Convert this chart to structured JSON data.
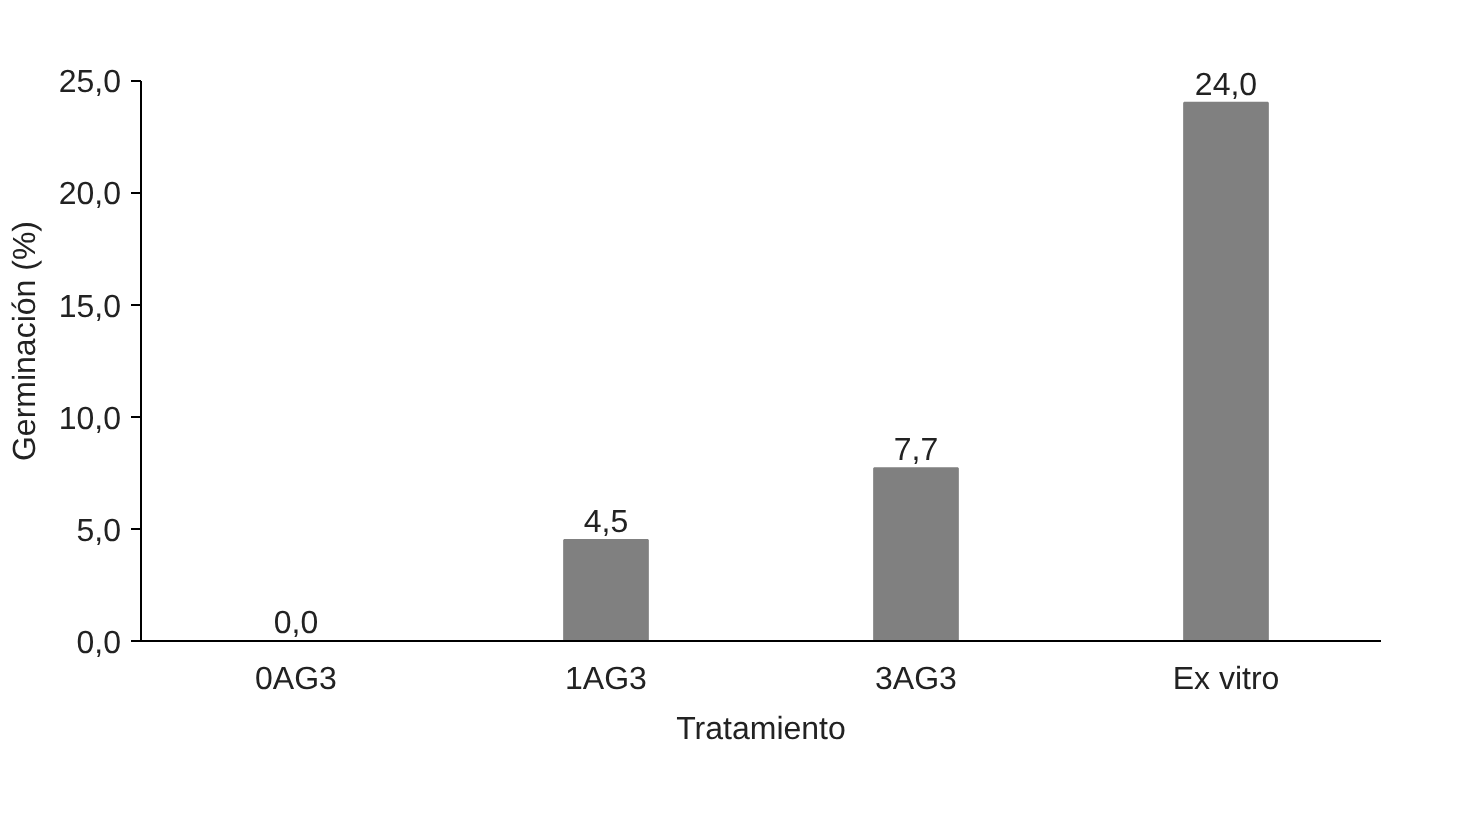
{
  "chart_data": {
    "type": "bar",
    "xlabel": "Tratamiento",
    "ylabel": "Germinación (%)",
    "categories": [
      "0AG3",
      "1AG3",
      "3AG3",
      "Ex vitro"
    ],
    "values": [
      0.0,
      4.5,
      7.7,
      24.0
    ],
    "value_labels": [
      "0,0",
      "4,5",
      "7,7",
      "24,0"
    ],
    "color": "#808080",
    "ylim": [
      0,
      25
    ],
    "yticks": [
      {
        "value": 0,
        "label": "0,0"
      },
      {
        "value": 5,
        "label": "5,0"
      },
      {
        "value": 10,
        "label": "10,0"
      },
      {
        "value": 15,
        "label": "15,0"
      },
      {
        "value": 20,
        "label": "20,0"
      },
      {
        "value": 25,
        "label": "25,0"
      }
    ],
    "grid": false
  }
}
